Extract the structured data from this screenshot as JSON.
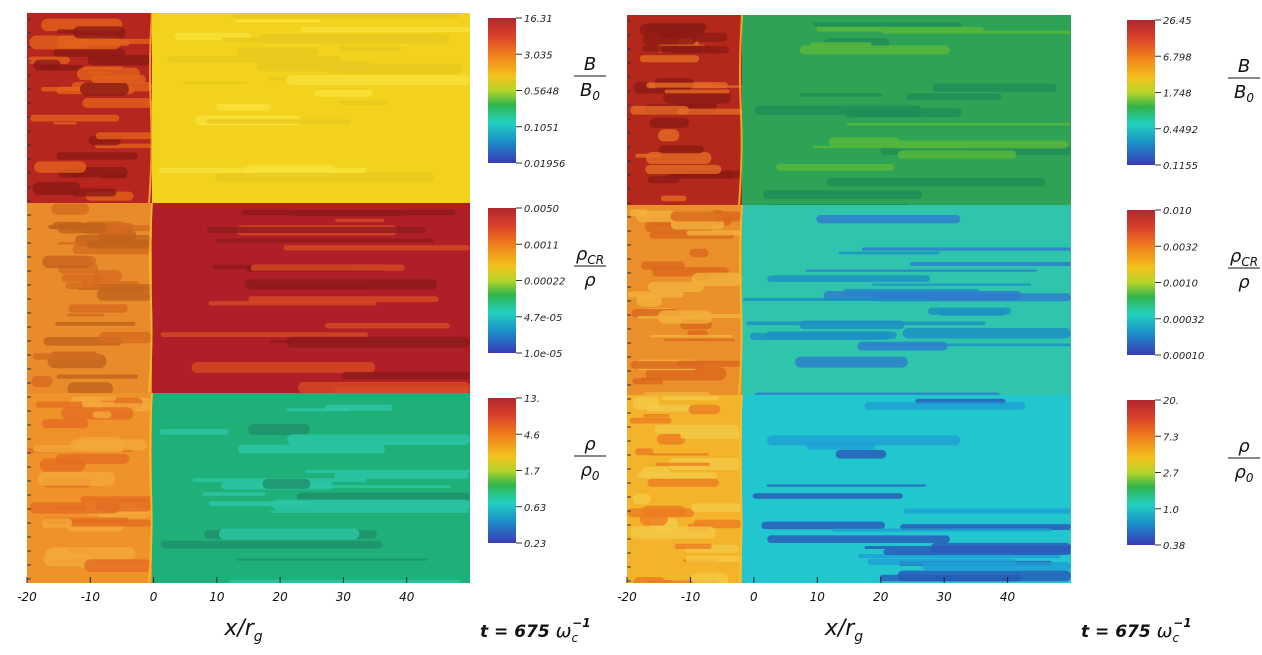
{
  "chart_data": [
    {
      "type": "heatmap",
      "panel": "left",
      "xlabel": "x/r",
      "xlabel_sub": "g",
      "x_ticks": [
        -20,
        -10,
        0,
        10,
        20,
        30,
        40
      ],
      "xlim": [
        -20,
        50
      ],
      "time": {
        "prefix": "t = 675",
        "symbol": "ω",
        "sub": "c",
        "sup": "−1"
      },
      "fields": [
        {
          "quantity": "B/B0",
          "num": "B",
          "den": "B",
          "den_sub": "0",
          "colorbar_ticks": [
            "16.31",
            "3.035",
            "0.5648",
            "0.1051",
            "0.01956"
          ]
        },
        {
          "quantity": "ρCR/ρ",
          "num": "ρ",
          "num_sub": "CR",
          "den": "ρ",
          "den_sub": "",
          "colorbar_ticks": [
            "0.0050",
            "0.0011",
            "0.00022",
            "4.7e-05",
            "1.0e-05"
          ]
        },
        {
          "quantity": "ρ/ρ0",
          "num": "ρ",
          "den": "ρ",
          "den_sub": "0",
          "colorbar_ticks": [
            "13.",
            "4.6",
            "1.7",
            "0.63",
            "0.23"
          ]
        }
      ]
    },
    {
      "type": "heatmap",
      "panel": "right",
      "xlabel": "x/r",
      "xlabel_sub": "g",
      "x_ticks": [
        -20,
        -10,
        0,
        10,
        20,
        30,
        40
      ],
      "xlim": [
        -20,
        50
      ],
      "time": {
        "prefix": "t = 675",
        "symbol": "ω",
        "sub": "c",
        "sup": "−1"
      },
      "fields": [
        {
          "quantity": "B/B0",
          "num": "B",
          "den": "B",
          "den_sub": "0",
          "colorbar_ticks": [
            "26.45",
            "6.798",
            "1.748",
            "0.4492",
            "0.1155"
          ]
        },
        {
          "quantity": "ρCR/ρ",
          "num": "ρ",
          "num_sub": "CR",
          "den": "ρ",
          "den_sub": "",
          "colorbar_ticks": [
            "0.010",
            "0.0032",
            "0.0010",
            "0.00032",
            "0.00010"
          ]
        },
        {
          "quantity": "ρ/ρ0",
          "num": "ρ",
          "den": "ρ",
          "den_sub": "0",
          "colorbar_ticks": [
            "20.",
            "7.3",
            "2.7",
            "1.0",
            "0.38"
          ]
        }
      ]
    }
  ]
}
